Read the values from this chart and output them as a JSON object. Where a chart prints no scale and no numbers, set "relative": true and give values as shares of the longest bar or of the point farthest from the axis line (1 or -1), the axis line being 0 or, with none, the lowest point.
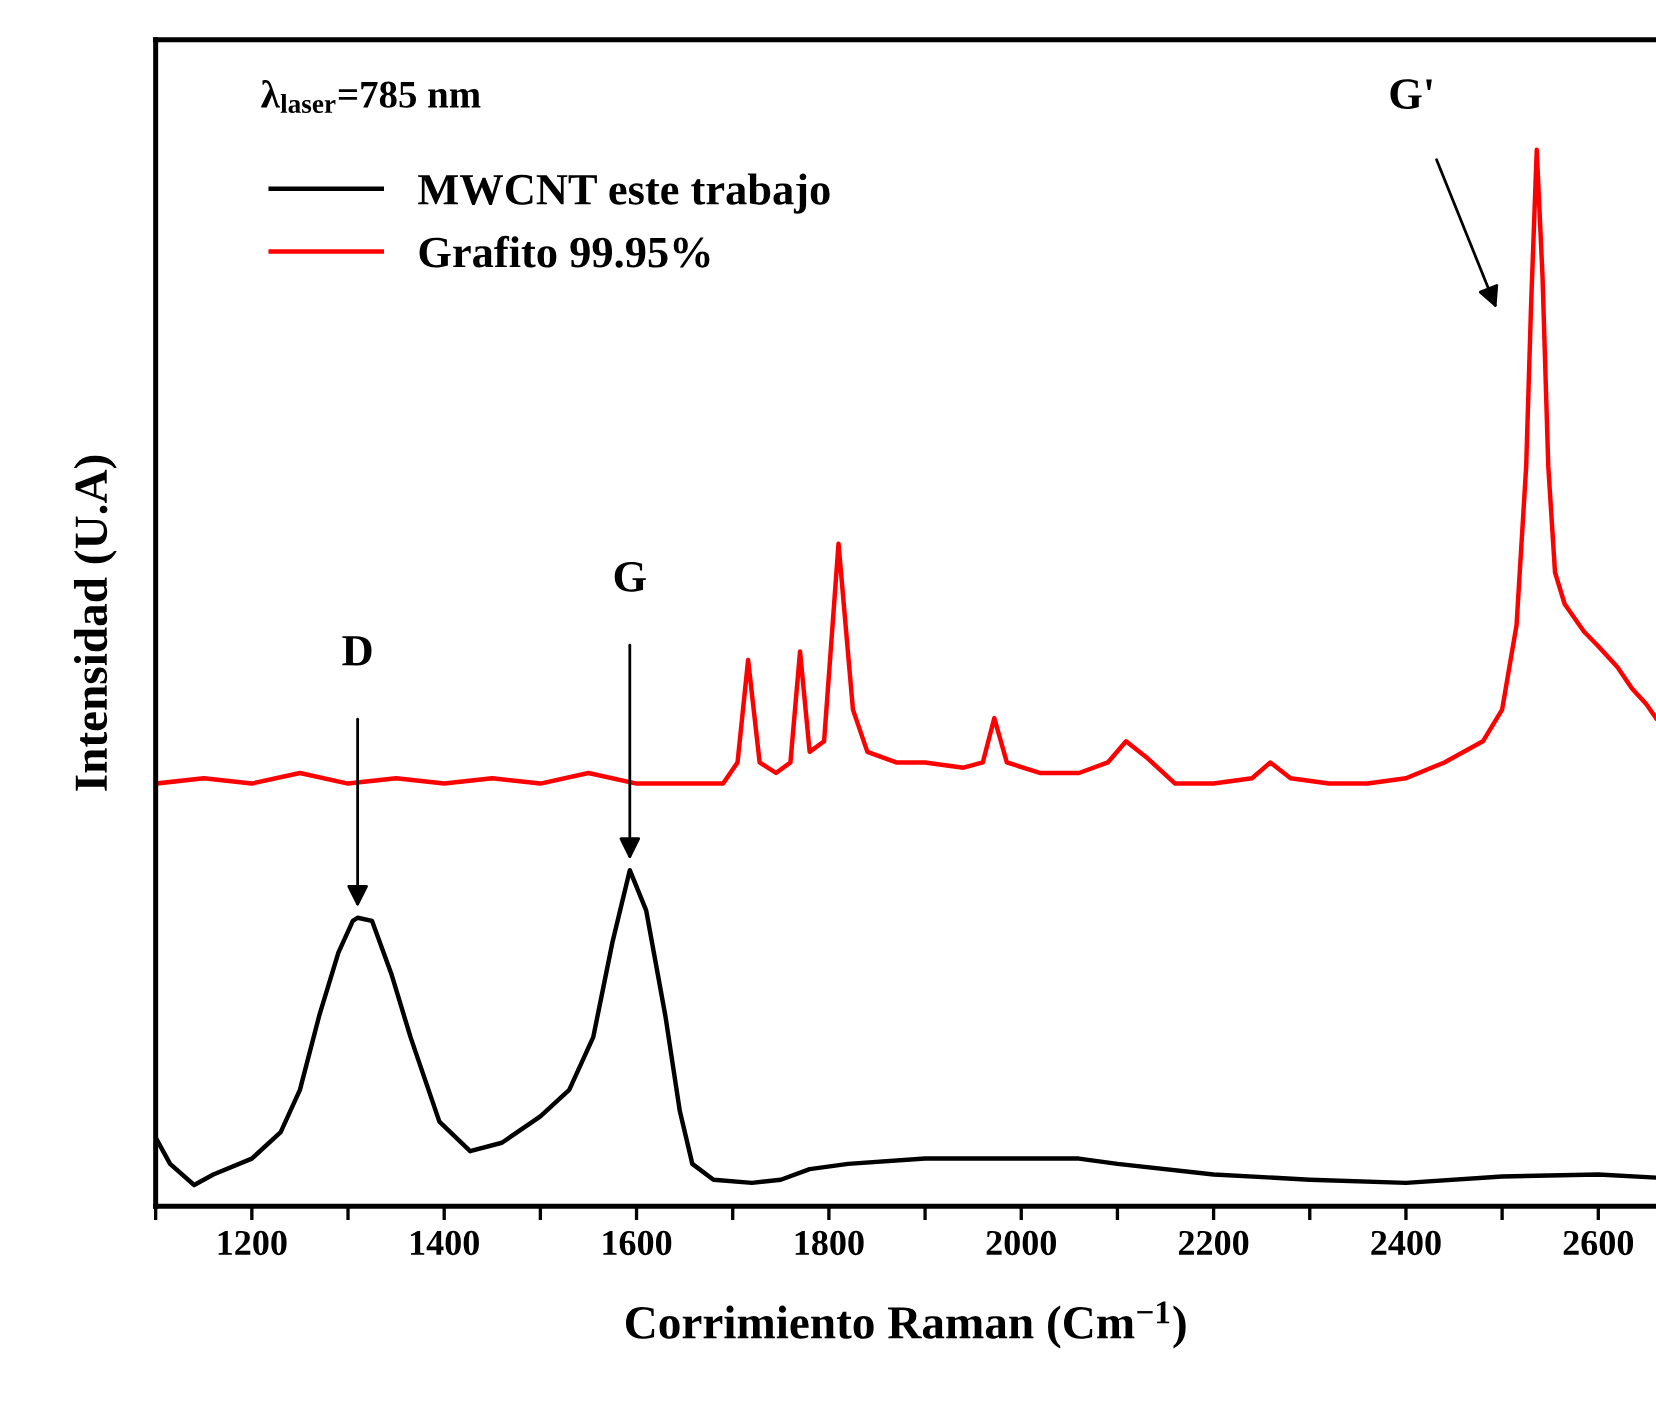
{
  "chart_data": {
    "type": "line",
    "relative": true,
    "xlabel": "Corrimiento Raman (Cm$^{−1}$)",
    "ylabel": "Intensidad (U.A)",
    "xlim": [
      1100,
      2660
    ],
    "xticks": [
      {
        "value": 1100,
        "label": null
      },
      1200,
      {
        "value": 1300,
        "label": null
      },
      1400,
      {
        "value": 1500,
        "label": null
      },
      1600,
      {
        "value": 1700,
        "label": null
      },
      1800,
      {
        "value": 1900,
        "label": null
      },
      2000,
      {
        "value": 2100,
        "label": null
      },
      2200,
      {
        "value": 2300,
        "label": null
      },
      2400,
      {
        "value": 2500,
        "label": null
      },
      2600
    ],
    "legend": "top left",
    "marker": "none",
    "line_style": "solid",
    "grid": false,
    "series": [
      {
        "name": "MWCNT este trabajo",
        "color": "#000000",
        "x": [
          1100,
          1115,
          1140,
          1160,
          1200,
          1230,
          1250,
          1270,
          1290,
          1305,
          1310,
          1325,
          1345,
          1365,
          1380,
          1395,
          1427,
          1460,
          1500,
          1530,
          1555,
          1575,
          1593,
          1610,
          1630,
          1645,
          1658,
          1680,
          1720,
          1750,
          1780,
          1820,
          1900,
          2000,
          2060,
          2100,
          2200,
          2300,
          2400,
          2500,
          2600,
          2660
        ],
        "values": [
          0.065,
          0.04,
          0.02,
          0.03,
          0.045,
          0.07,
          0.11,
          0.18,
          0.24,
          0.27,
          0.273,
          0.27,
          0.22,
          0.16,
          0.12,
          0.08,
          0.052,
          0.06,
          0.085,
          0.11,
          0.16,
          0.25,
          0.318,
          0.28,
          0.18,
          0.09,
          0.04,
          0.025,
          0.022,
          0.025,
          0.035,
          0.04,
          0.045,
          0.045,
          0.045,
          0.04,
          0.03,
          0.025,
          0.022,
          0.028,
          0.03,
          0.027
        ]
      },
      {
        "name": "Grafito 99.95%",
        "color": "#ff0000",
        "x": [
          1100,
          1150,
          1200,
          1250,
          1300,
          1350,
          1400,
          1450,
          1500,
          1550,
          1600,
          1650,
          1690,
          1705,
          1716,
          1728,
          1745,
          1760,
          1770,
          1780,
          1795,
          1810,
          1825,
          1840,
          1870,
          1900,
          1940,
          1960,
          1972,
          1985,
          2020,
          2060,
          2090,
          2109,
          2130,
          2160,
          2200,
          2240,
          2259,
          2280,
          2320,
          2360,
          2400,
          2440,
          2480,
          2500,
          2515,
          2525,
          2530,
          2536,
          2542,
          2548,
          2555,
          2565,
          2585,
          2600,
          2620,
          2635,
          2650,
          2660
        ],
        "values": [
          0.4,
          0.405,
          0.4,
          0.41,
          0.4,
          0.405,
          0.4,
          0.405,
          0.4,
          0.41,
          0.4,
          0.4,
          0.4,
          0.42,
          0.517,
          0.42,
          0.41,
          0.42,
          0.525,
          0.43,
          0.44,
          0.627,
          0.47,
          0.43,
          0.42,
          0.42,
          0.415,
          0.42,
          0.462,
          0.42,
          0.41,
          0.41,
          0.42,
          0.44,
          0.425,
          0.4,
          0.4,
          0.405,
          0.42,
          0.405,
          0.4,
          0.4,
          0.405,
          0.42,
          0.44,
          0.47,
          0.55,
          0.7,
          0.85,
          1.0,
          0.88,
          0.7,
          0.6,
          0.57,
          0.544,
          0.53,
          0.51,
          0.49,
          0.475,
          0.462
        ]
      }
    ],
    "annotations": [
      "λ$_{laser}$=785 nm",
      {
        "text": "D",
        "x": 1310,
        "y": 0.273
      },
      {
        "text": "G",
        "x": 1593,
        "y": 0.318
      },
      {
        "text": "G'",
        "x": 2536,
        "y": 1.0
      }
    ]
  }
}
